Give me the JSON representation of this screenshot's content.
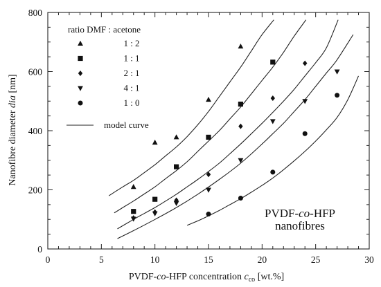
{
  "chart_data": {
    "type": "scatter",
    "xlabel": "PVDF-co-HFP concentration c_co [wt.%]",
    "xlabel_parts": {
      "pre": "PVDF-",
      "co": "co",
      "mid": "-HFP concentration ",
      "sym": "c",
      "sub": "co",
      "unit": " [wt.%]"
    },
    "ylabel": "Nanofibre diameter dia [nm]",
    "ylabel_parts": {
      "pre": "Nanofibre diameter ",
      "sym": "dia",
      "unit": " [nm]"
    },
    "xlim": [
      0,
      30
    ],
    "ylim": [
      0,
      800
    ],
    "xticks": [
      "0",
      "5",
      "10",
      "15",
      "20",
      "25",
      "30"
    ],
    "yticks": [
      "0",
      "200",
      "400",
      "600",
      "800"
    ],
    "grid": false,
    "legend": {
      "title": "ratio DMF : acetone",
      "placement": "top-left",
      "model_label": "model curve"
    },
    "annotation": {
      "line1_pre": "PVDF-",
      "line1_co": "co",
      "line1_post": "-HFP",
      "line2": "nanofibres",
      "placement": "bottom-right"
    },
    "series": [
      {
        "name": "1 : 2",
        "marker": "triangle-up",
        "x": [
          8,
          10,
          12,
          15,
          18
        ],
        "y": [
          210,
          360,
          378,
          505,
          685
        ]
      },
      {
        "name": "1 : 1",
        "marker": "square",
        "x": [
          8,
          10,
          12,
          15,
          18,
          21
        ],
        "y": [
          127,
          168,
          278,
          378,
          490,
          632
        ]
      },
      {
        "name": "2 : 1",
        "marker": "diamond",
        "x": [
          8,
          10,
          12,
          15,
          18,
          21,
          24
        ],
        "y": [
          105,
          125,
          165,
          252,
          415,
          510,
          628
        ]
      },
      {
        "name": "4 : 1",
        "marker": "triangle-down",
        "x": [
          8,
          10,
          12,
          15,
          18,
          21,
          24,
          27
        ],
        "y": [
          102,
          120,
          155,
          200,
          300,
          432,
          500,
          600
        ]
      },
      {
        "name": "1 : 0",
        "marker": "circle",
        "x": [
          15,
          18,
          21,
          24,
          27
        ],
        "y": [
          118,
          172,
          260,
          390,
          520
        ]
      }
    ],
    "model_curves": [
      {
        "x": [
          5.7,
          7,
          8,
          9,
          10,
          11,
          12,
          13,
          14,
          15,
          16,
          17,
          18,
          19,
          20,
          21.1
        ],
        "y": [
          180,
          210,
          232,
          258,
          285,
          315,
          345,
          380,
          420,
          465,
          515,
          565,
          615,
          670,
          725,
          775
        ]
      },
      {
        "x": [
          6.2,
          7,
          8,
          9,
          10,
          11,
          12,
          13,
          14,
          15,
          16,
          17,
          18,
          19,
          20,
          21,
          22,
          23,
          24.1
        ],
        "y": [
          122,
          140,
          162,
          186,
          210,
          238,
          265,
          295,
          330,
          365,
          400,
          440,
          480,
          525,
          570,
          615,
          665,
          720,
          775
        ]
      },
      {
        "x": [
          6.5,
          8,
          9,
          10,
          11,
          12,
          13,
          14,
          15,
          16,
          17,
          18,
          19,
          20,
          21,
          22,
          23,
          24,
          25,
          26,
          27.1
        ],
        "y": [
          68,
          100,
          120,
          140,
          162,
          185,
          210,
          235,
          262,
          290,
          322,
          355,
          390,
          425,
          462,
          500,
          540,
          585,
          630,
          680,
          775
        ]
      },
      {
        "x": [
          6.5,
          8,
          10,
          12,
          14,
          16,
          18,
          20,
          21,
          22,
          23,
          24,
          25,
          26,
          27,
          28.5
        ],
        "y": [
          35,
          62,
          100,
          140,
          185,
          235,
          290,
          355,
          390,
          425,
          465,
          505,
          550,
          595,
          640,
          725
        ]
      },
      {
        "x": [
          13,
          14,
          15,
          16,
          17,
          18,
          19,
          20,
          21,
          22,
          23,
          24,
          25,
          26,
          27,
          28,
          29
        ],
        "y": [
          80,
          95,
          112,
          130,
          150,
          170,
          192,
          215,
          240,
          268,
          298,
          330,
          365,
          403,
          445,
          505,
          585
        ]
      }
    ]
  }
}
